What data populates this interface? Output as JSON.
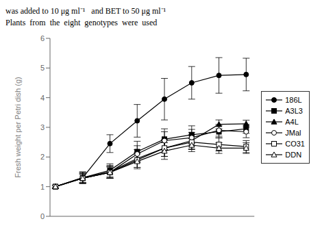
{
  "chart_data": {
    "type": "line",
    "annotations": [
      "was added to 10 μg ml⁻¹   and BET to 50 μg ml⁻¹",
      "Plants  from  the  eight  genotypes  were  used"
    ],
    "y_label": "Fresh weight per Petri dish (g)",
    "x": [
      0,
      1,
      2,
      3,
      4,
      5,
      6,
      7
    ],
    "xlim": [
      -0.2,
      7.3
    ],
    "ylim": [
      0,
      6
    ],
    "yticks": [
      0,
      1,
      2,
      3,
      4,
      5,
      6
    ],
    "tick_labels": "y",
    "grid": false,
    "legend": "right",
    "color": "black",
    "series": [
      {
        "name": "186L",
        "marker": "circle",
        "values": [
          1.0,
          1.3,
          2.45,
          3.22,
          3.95,
          4.5,
          4.75,
          4.78
        ],
        "yerr": [
          0.05,
          0.2,
          0.3,
          0.55,
          0.7,
          0.55,
          0.6,
          0.55
        ]
      },
      {
        "name": "A3L3",
        "marker": "square",
        "values": [
          1.0,
          1.3,
          1.55,
          2.18,
          2.6,
          2.75,
          2.85,
          2.95
        ],
        "yerr": [
          0.05,
          0.18,
          0.22,
          0.35,
          0.35,
          0.3,
          0.2,
          0.15
        ]
      },
      {
        "name": "A4L",
        "marker": "triangle",
        "values": [
          1.0,
          1.3,
          1.5,
          1.95,
          2.3,
          2.55,
          3.1,
          3.12
        ],
        "yerr": [
          0.05,
          0.18,
          0.22,
          0.3,
          0.28,
          0.28,
          0.15,
          0.12
        ]
      },
      {
        "name": "JMal",
        "marker": "circle-open",
        "values": [
          1.0,
          1.28,
          1.48,
          2.1,
          2.55,
          2.65,
          2.9,
          2.85
        ],
        "yerr": [
          0.05,
          0.15,
          0.2,
          0.28,
          0.3,
          0.28,
          0.2,
          0.2
        ]
      },
      {
        "name": "CO31",
        "marker": "square-open",
        "values": [
          1.0,
          1.28,
          1.48,
          1.9,
          2.3,
          2.5,
          2.42,
          2.35
        ],
        "yerr": [
          0.05,
          0.15,
          0.2,
          0.25,
          0.28,
          0.25,
          0.22,
          0.2
        ]
      },
      {
        "name": "DDN",
        "marker": "triangle-open",
        "values": [
          1.0,
          1.28,
          1.48,
          1.85,
          2.2,
          2.4,
          2.3,
          2.3
        ],
        "yerr": [
          0.05,
          0.15,
          0.18,
          0.25,
          0.28,
          0.22,
          0.18,
          0.18
        ]
      }
    ]
  }
}
